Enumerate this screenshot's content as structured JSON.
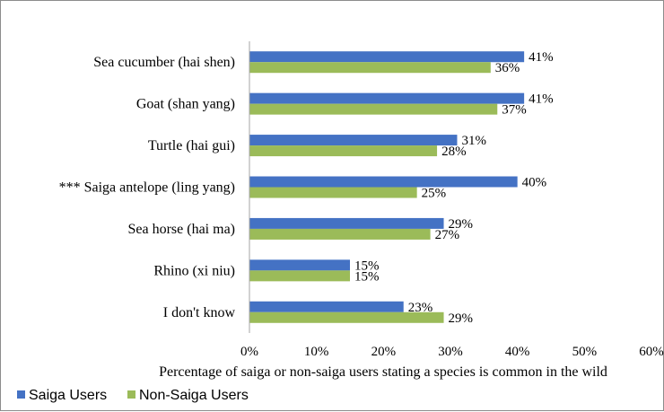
{
  "chart_data": {
    "type": "bar",
    "orientation": "horizontal",
    "categories": [
      "Sea cucumber (hai shen)",
      "Goat (shan yang)",
      "Turtle (hai gui)",
      "*** Saiga antelope (ling yang)",
      "Sea horse (hai ma)",
      "Rhino (xi niu)",
      "I don't know"
    ],
    "series": [
      {
        "name": "Saiga Users",
        "color": "#4472c4",
        "values": [
          41,
          41,
          31,
          40,
          29,
          15,
          23
        ]
      },
      {
        "name": "Non-Saiga Users",
        "color": "#9bbb59",
        "values": [
          36,
          37,
          28,
          25,
          27,
          15,
          29
        ]
      }
    ],
    "value_format": "percent",
    "xlabel": "Percentage of saiga or non-saiga users stating a species is common in the wild",
    "ylabel": "",
    "title": "",
    "xlim": [
      0,
      60
    ],
    "xticks": [
      0,
      10,
      20,
      30,
      40,
      50,
      60
    ],
    "xtick_labels": [
      "0%",
      "10%",
      "20%",
      "30%",
      "40%",
      "50%",
      "60%"
    ],
    "grid": false,
    "legend_position": "bottom-left"
  }
}
